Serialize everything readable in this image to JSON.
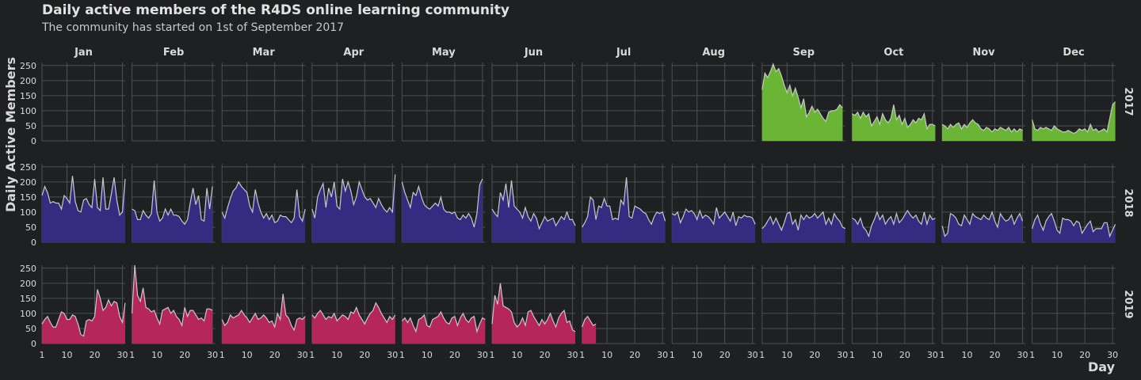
{
  "chart_data": {
    "type": "area",
    "title": "Daily active members of the R4DS online learning community",
    "subtitle": "The community has started on 1st of September 2017",
    "ylabel": "Daily Active Members",
    "xlabel": "Day",
    "ylim": [
      0,
      260
    ],
    "yticks": [
      0,
      50,
      100,
      150,
      200,
      250
    ],
    "xlim": [
      1,
      31
    ],
    "xticks": [
      1,
      10,
      20,
      30
    ],
    "grid": true,
    "legend": "none",
    "months": [
      "Jan",
      "Feb",
      "Mar",
      "Apr",
      "May",
      "Jun",
      "Jul",
      "Aug",
      "Sep",
      "Oct",
      "Nov",
      "Dec"
    ],
    "years": [
      "2017",
      "2018",
      "2019"
    ],
    "colors": {
      "2017": "#6bb536",
      "2018": "#352c82",
      "2019": "#b5265a",
      "line": "#c8c8c8",
      "panel": "#1e2022",
      "grid": "#4d4f51",
      "text": "#d9d9d9"
    },
    "series": {
      "2017": {
        "Sep": [
          170,
          225,
          210,
          230,
          255,
          230,
          240,
          215,
          185,
          160,
          185,
          150,
          175,
          145,
          110,
          140,
          80,
          95,
          115,
          95,
          105,
          90,
          75,
          65,
          95,
          100,
          100,
          105,
          120,
          110
        ],
        "Oct": [
          90,
          85,
          95,
          75,
          95,
          80,
          90,
          50,
          65,
          80,
          55,
          90,
          70,
          60,
          75,
          120,
          70,
          85,
          55,
          75,
          45,
          55,
          70,
          60,
          75,
          70,
          90,
          40,
          55,
          55,
          50
        ],
        "Nov": [
          55,
          50,
          40,
          55,
          45,
          55,
          60,
          40,
          55,
          45,
          60,
          70,
          60,
          55,
          40,
          35,
          45,
          40,
          30,
          40,
          35,
          45,
          40,
          35,
          45,
          30,
          40,
          30,
          40,
          35
        ],
        "Dec": [
          70,
          40,
          35,
          45,
          40,
          45,
          40,
          35,
          50,
          40,
          35,
          30,
          30,
          35,
          30,
          25,
          30,
          40,
          35,
          40,
          30,
          55,
          35,
          40,
          30,
          35,
          40,
          30,
          75,
          120,
          130
        ]
      },
      "2018": {
        "Jan": [
          155,
          185,
          165,
          130,
          135,
          130,
          130,
          110,
          155,
          145,
          130,
          220,
          135,
          105,
          100,
          140,
          145,
          125,
          115,
          210,
          115,
          105,
          215,
          110,
          110,
          160,
          215,
          140,
          90,
          100,
          210
        ],
        "Feb": [
          110,
          105,
          75,
          75,
          105,
          90,
          80,
          95,
          205,
          100,
          70,
          80,
          110,
          90,
          110,
          90,
          90,
          85,
          70,
          60,
          75,
          130,
          180,
          125,
          155,
          75,
          70,
          180,
          110,
          185
        ],
        "Mar": [
          100,
          80,
          115,
          145,
          170,
          180,
          200,
          185,
          175,
          165,
          120,
          100,
          175,
          130,
          100,
          80,
          95,
          75,
          90,
          65,
          70,
          90,
          85,
          85,
          75,
          65,
          80,
          175,
          85,
          70,
          110
        ],
        "Apr": [
          110,
          80,
          150,
          175,
          195,
          115,
          180,
          150,
          200,
          120,
          110,
          210,
          170,
          200,
          170,
          125,
          150,
          200,
          175,
          150,
          140,
          145,
          130,
          115,
          145,
          125,
          110,
          100,
          115,
          100,
          225
        ],
        "May": [
          200,
          165,
          140,
          115,
          165,
          155,
          185,
          150,
          125,
          115,
          110,
          120,
          130,
          120,
          150,
          110,
          100,
          100,
          95,
          100,
          80,
          75,
          90,
          80,
          95,
          80,
          50,
          95,
          190,
          210
        ],
        "Jun": [
          110,
          95,
          85,
          165,
          140,
          195,
          115,
          205,
          120,
          110,
          100,
          80,
          115,
          85,
          70,
          95,
          80,
          45,
          65,
          85,
          70,
          75,
          80,
          55,
          70,
          85,
          75,
          100,
          75,
          75,
          55
        ],
        "Jul": [
          50,
          65,
          85,
          150,
          140,
          75,
          120,
          115,
          145,
          120,
          120,
          75,
          80,
          75,
          140,
          125,
          215,
          85,
          80,
          120,
          115,
          110,
          100,
          95,
          75,
          60,
          85,
          100,
          95,
          100,
          70
        ],
        "Aug": [
          95,
          90,
          100,
          65,
          85,
          110,
          100,
          105,
          95,
          75,
          105,
          80,
          90,
          85,
          75,
          60,
          115,
          80,
          90,
          100,
          85,
          70,
          100,
          55,
          85,
          80,
          90,
          85,
          85,
          80,
          60
        ],
        "Sep": [
          45,
          55,
          70,
          85,
          60,
          80,
          60,
          40,
          65,
          95,
          100,
          60,
          75,
          40,
          90,
          75,
          90,
          80,
          85,
          95,
          80,
          90,
          100,
          60,
          80,
          60,
          95,
          80,
          70,
          50,
          45
        ],
        "Oct": [
          80,
          75,
          60,
          80,
          50,
          40,
          20,
          55,
          75,
          100,
          75,
          90,
          60,
          75,
          85,
          60,
          95,
          65,
          75,
          90,
          105,
          90,
          80,
          90,
          70,
          60,
          100,
          60,
          90,
          75,
          80
        ],
        "Nov": [
          55,
          20,
          30,
          95,
          90,
          80,
          60,
          55,
          90,
          75,
          60,
          95,
          85,
          80,
          75,
          90,
          80,
          75,
          100,
          70,
          50,
          95,
          80,
          70,
          75,
          90,
          60,
          80,
          95,
          70
        ],
        "Dec": [
          45,
          75,
          90,
          60,
          40,
          70,
          85,
          95,
          70,
          40,
          30,
          80,
          75,
          75,
          70,
          55,
          70,
          65,
          30,
          45,
          60,
          70,
          35,
          45,
          45,
          45,
          65,
          65,
          20,
          40,
          60
        ]
      },
      "2019": {
        "Jan": [
          65,
          80,
          90,
          70,
          55,
          55,
          80,
          105,
          100,
          80,
          80,
          95,
          90,
          65,
          30,
          25,
          75,
          80,
          75,
          90,
          180,
          150,
          110,
          120,
          145,
          125,
          140,
          135,
          90,
          70,
          135
        ],
        "Feb": [
          100,
          260,
          160,
          140,
          185,
          120,
          115,
          105,
          110,
          85,
          65,
          110,
          115,
          120,
          100,
          110,
          90,
          80,
          60,
          120,
          90,
          110,
          110,
          95,
          80,
          85,
          75,
          115,
          115,
          110
        ],
        "Mar": [
          80,
          60,
          70,
          95,
          85,
          90,
          95,
          110,
          95,
          85,
          70,
          85,
          100,
          80,
          85,
          95,
          85,
          70,
          75,
          55,
          100,
          80,
          165,
          95,
          85,
          60,
          45,
          80,
          85,
          80,
          90
        ],
        "Apr": [
          95,
          85,
          100,
          110,
          95,
          80,
          90,
          85,
          100,
          75,
          85,
          95,
          90,
          80,
          105,
          100,
          120,
          95,
          80,
          65,
          85,
          100,
          110,
          135,
          120,
          100,
          85,
          70,
          90,
          80,
          95
        ],
        "May": [
          75,
          85,
          70,
          85,
          60,
          40,
          80,
          85,
          95,
          60,
          55,
          80,
          85,
          90,
          105,
          85,
          70,
          65,
          85,
          90,
          60,
          85,
          100,
          80,
          70,
          85,
          90,
          40,
          65,
          85,
          80
        ],
        "Jun": [
          65,
          160,
          130,
          200,
          125,
          120,
          115,
          105,
          70,
          55,
          65,
          85,
          60,
          105,
          110,
          90,
          75,
          60,
          80,
          65,
          80,
          100,
          75,
          55,
          85,
          100,
          110,
          70,
          75,
          45,
          40
        ],
        "Jul": [
          55,
          80,
          90,
          75,
          60,
          65
        ]
      }
    }
  }
}
